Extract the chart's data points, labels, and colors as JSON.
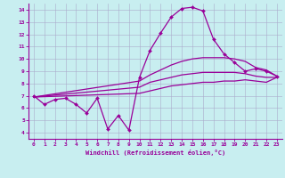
{
  "xlabel": "Windchill (Refroidissement éolien,°C)",
  "background_color": "#c8eef0",
  "line_color": "#990099",
  "grid_color": "#aaaacc",
  "xlim": [
    -0.5,
    23.5
  ],
  "ylim": [
    3.5,
    14.5
  ],
  "xticks": [
    0,
    1,
    2,
    3,
    4,
    5,
    6,
    7,
    8,
    9,
    10,
    11,
    12,
    13,
    14,
    15,
    16,
    17,
    18,
    19,
    20,
    21,
    22,
    23
  ],
  "yticks": [
    4,
    5,
    6,
    7,
    8,
    9,
    10,
    11,
    12,
    13,
    14
  ],
  "curves": [
    {
      "x": [
        0,
        1,
        2,
        3,
        4,
        5,
        6,
        7,
        8,
        9,
        10,
        11,
        12,
        13,
        14,
        15,
        16,
        17,
        18,
        19,
        20,
        21,
        22,
        23
      ],
      "y": [
        7.0,
        6.3,
        6.7,
        6.8,
        6.3,
        5.6,
        6.8,
        4.3,
        5.4,
        4.2,
        8.5,
        10.7,
        12.1,
        13.4,
        14.1,
        14.2,
        13.9,
        11.6,
        10.4,
        9.7,
        9.0,
        9.2,
        9.0,
        8.6
      ],
      "marker": true
    },
    {
      "x": [
        0,
        10,
        11,
        12,
        13,
        14,
        15,
        16,
        17,
        18,
        19,
        20,
        21,
        22,
        23
      ],
      "y": [
        6.9,
        8.2,
        8.7,
        9.1,
        9.5,
        9.8,
        10.0,
        10.1,
        10.1,
        10.1,
        10.0,
        9.8,
        9.3,
        9.1,
        8.6
      ],
      "marker": false
    },
    {
      "x": [
        0,
        10,
        11,
        12,
        13,
        14,
        15,
        16,
        17,
        18,
        19,
        20,
        21,
        22,
        23
      ],
      "y": [
        6.9,
        7.7,
        8.1,
        8.3,
        8.5,
        8.7,
        8.8,
        8.9,
        8.9,
        8.9,
        8.9,
        8.8,
        8.6,
        8.5,
        8.5
      ],
      "marker": false
    },
    {
      "x": [
        0,
        10,
        11,
        12,
        13,
        14,
        15,
        16,
        17,
        18,
        19,
        20,
        21,
        22,
        23
      ],
      "y": [
        6.9,
        7.2,
        7.4,
        7.6,
        7.8,
        7.9,
        8.0,
        8.1,
        8.1,
        8.2,
        8.2,
        8.3,
        8.2,
        8.1,
        8.5
      ],
      "marker": false
    }
  ]
}
